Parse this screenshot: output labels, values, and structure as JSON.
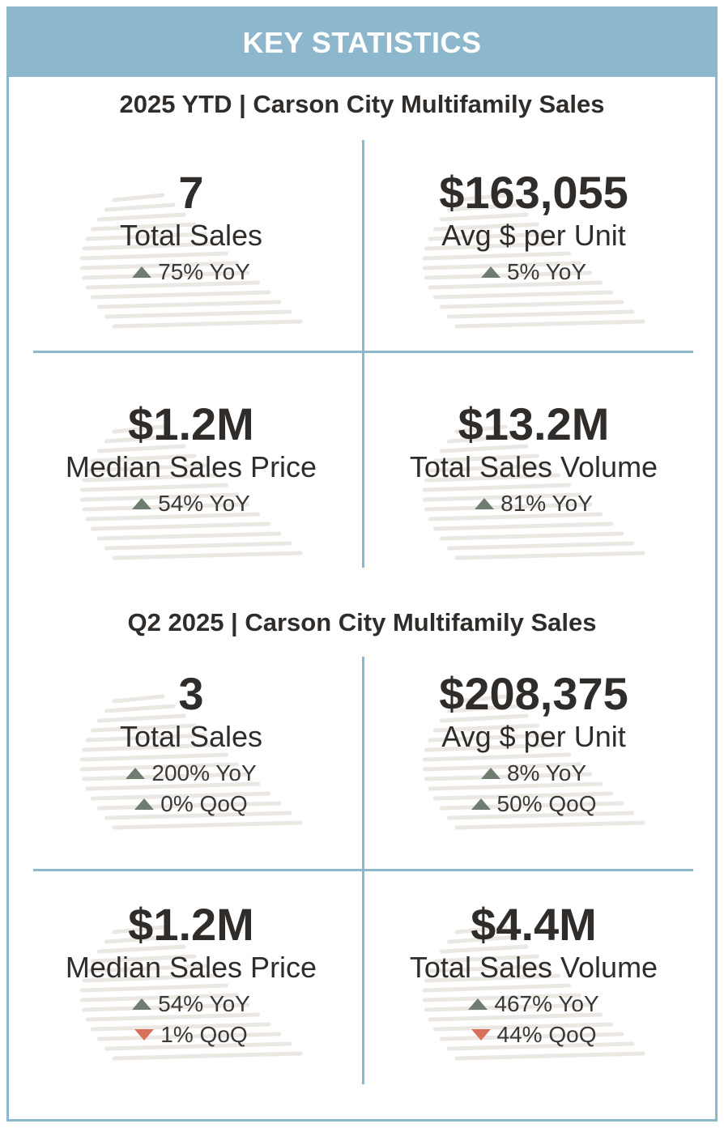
{
  "banner": {
    "title": "KEY STATISTICS"
  },
  "colors": {
    "accent": "#8db7cc",
    "up": "#6f7c70",
    "down": "#d8705a",
    "text": "#2f2c2a"
  },
  "sections": [
    {
      "title": "2025 YTD  |  Carson City Multifamily Sales",
      "cells": [
        {
          "value": "7",
          "label": "Total Sales",
          "changes": [
            {
              "dir": "up",
              "text": "75% YoY"
            }
          ]
        },
        {
          "value": "$163,055",
          "label": "Avg $ per Unit",
          "changes": [
            {
              "dir": "up",
              "text": "5% YoY"
            }
          ]
        },
        {
          "value": "$1.2M",
          "label": "Median Sales Price",
          "changes": [
            {
              "dir": "up",
              "text": "54% YoY"
            }
          ]
        },
        {
          "value": "$13.2M",
          "label": "Total Sales Volume",
          "changes": [
            {
              "dir": "up",
              "text": "81% YoY"
            }
          ]
        }
      ]
    },
    {
      "title": "Q2  2025  |  Carson City Multifamily Sales",
      "cells": [
        {
          "value": "3",
          "label": "Total Sales",
          "changes": [
            {
              "dir": "up",
              "text": "200% YoY"
            },
            {
              "dir": "up",
              "text": "0% QoQ"
            }
          ]
        },
        {
          "value": "$208,375",
          "label": "Avg $ per Unit",
          "changes": [
            {
              "dir": "up",
              "text": "8% YoY"
            },
            {
              "dir": "up",
              "text": "50% QoQ"
            }
          ]
        },
        {
          "value": "$1.2M",
          "label": "Median Sales Price",
          "changes": [
            {
              "dir": "up",
              "text": "54% YoY"
            },
            {
              "dir": "down",
              "text": "1% QoQ"
            }
          ]
        },
        {
          "value": "$4.4M",
          "label": "Total Sales Volume",
          "changes": [
            {
              "dir": "up",
              "text": "467% YoY"
            },
            {
              "dir": "down",
              "text": "44% QoQ"
            }
          ]
        }
      ]
    }
  ]
}
